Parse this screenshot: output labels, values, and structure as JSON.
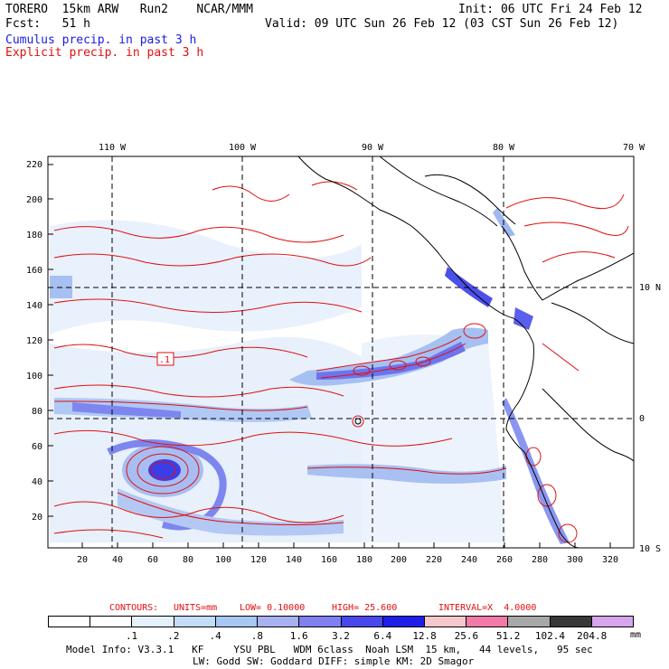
{
  "header": {
    "left1": "TORERO  15km ARW   Run2    NCAR/MMM",
    "left2": "Fcst:   51 h",
    "right1": "Init: 06 UTC Fri 24 Feb 12",
    "right2": "Valid: 09 UTC Sun 26 Feb 12 (03 CST Sun 26 Feb 12)",
    "cumulus": "Cumulus precip. in past 3 h",
    "explicit": "Explicit precip. in past 3 h"
  },
  "map": {
    "lon_labels": [
      "110 W",
      "100 W",
      "90 W",
      "80 W",
      "70 W"
    ],
    "lat_labels": [
      "10 N",
      "0",
      "10 S"
    ],
    "y_ticks": [
      "220",
      "200",
      "180",
      "160",
      "140",
      "120",
      "100",
      "80",
      "60",
      "40",
      "20"
    ],
    "x_ticks": [
      "20",
      "40",
      "60",
      "80",
      "100",
      "120",
      "140",
      "160",
      "180",
      "200",
      "220",
      "240",
      "260",
      "280",
      "300",
      "320"
    ],
    "contour_label": ".1"
  },
  "contours": {
    "label": "CONTOURS:",
    "units": "UNITS=mm",
    "low": "LOW= 0.10000",
    "high": "HIGH= 25.600",
    "interval": "INTERVAL=X  4.0000"
  },
  "colorbar": {
    "labels": [
      ".1",
      ".2",
      ".4",
      ".8",
      "1.6",
      "3.2",
      "6.4",
      "12.8",
      "25.6",
      "51.2",
      "102.4",
      "204.8"
    ],
    "unit": "mm",
    "colors": [
      "#ffffff",
      "#ffffff",
      "#e6f0fb",
      "#c4dcf7",
      "#a6c8f2",
      "#a8b2f2",
      "#7f80f0",
      "#4848ec",
      "#1e1ee6",
      "#f4c8cc",
      "#f27aa8",
      "#a8a8a8",
      "#383838",
      "#d7a4ee"
    ]
  },
  "footer": {
    "line1": "Model Info: V3.3.1   KF     YSU PBL   WDM 6class  Noah LSM  15 km,   44 levels,   95 sec",
    "line2": "LW: Godd SW: Goddard DIFF: simple KM: 2D Smagor"
  }
}
